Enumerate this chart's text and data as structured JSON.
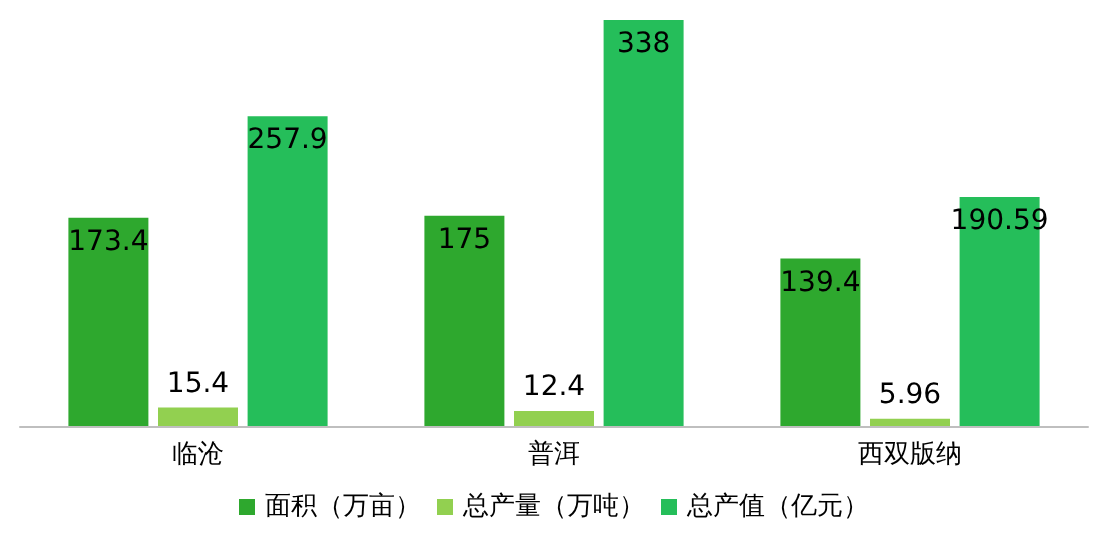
{
  "chart_data": {
    "type": "bar",
    "categories": [
      "临沧",
      "普洱",
      "西双版纳"
    ],
    "series": [
      {
        "name": "面积（万亩）",
        "color": "#2ea82e",
        "values": [
          173.4,
          175,
          139.4
        ]
      },
      {
        "name": "总产量（万吨）",
        "color": "#92d050",
        "values": [
          15.4,
          12.4,
          5.96
        ]
      },
      {
        "name": "总产值（亿元）",
        "color": "#25be5a",
        "values": [
          257.9,
          338,
          190.59
        ]
      }
    ],
    "data_labels": true,
    "legend": "bottom",
    "grid": false
  }
}
